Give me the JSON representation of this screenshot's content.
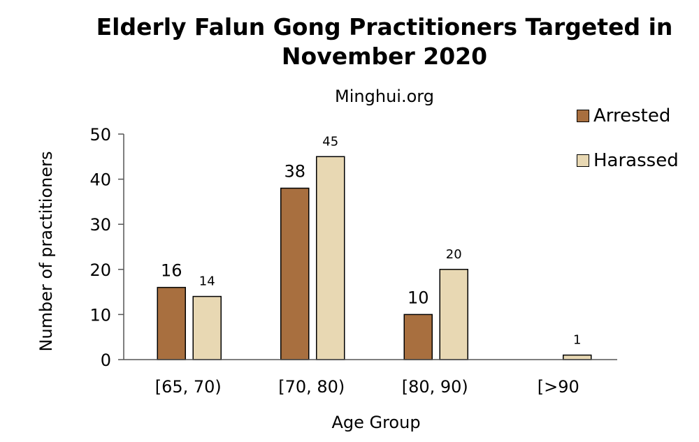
{
  "chart_data": {
    "type": "bar",
    "title_lines": [
      "Elderly Falun Gong Practitioners Targeted in",
      "November 2020"
    ],
    "subtitle": "Minghui.org",
    "categories": [
      "[65, 70)",
      "[70, 80)",
      "[80, 90)",
      "[>90"
    ],
    "series": [
      {
        "name": "Arrested",
        "values": [
          16,
          38,
          10,
          0
        ],
        "labels": [
          "16",
          "38",
          "10",
          ""
        ],
        "color": "#A86F3F"
      },
      {
        "name": "Harassed",
        "values": [
          14,
          45,
          20,
          1
        ],
        "labels": [
          "14",
          "45",
          "20",
          "1"
        ],
        "color": "#E8D8B3"
      }
    ],
    "xlabel": "Age Group",
    "ylabel": "Number of practitioners",
    "ylim": [
      0,
      50
    ],
    "yticks": [
      "0",
      "10",
      "20",
      "30",
      "40",
      "50"
    ],
    "grid": false,
    "legend_position": "top-right"
  }
}
